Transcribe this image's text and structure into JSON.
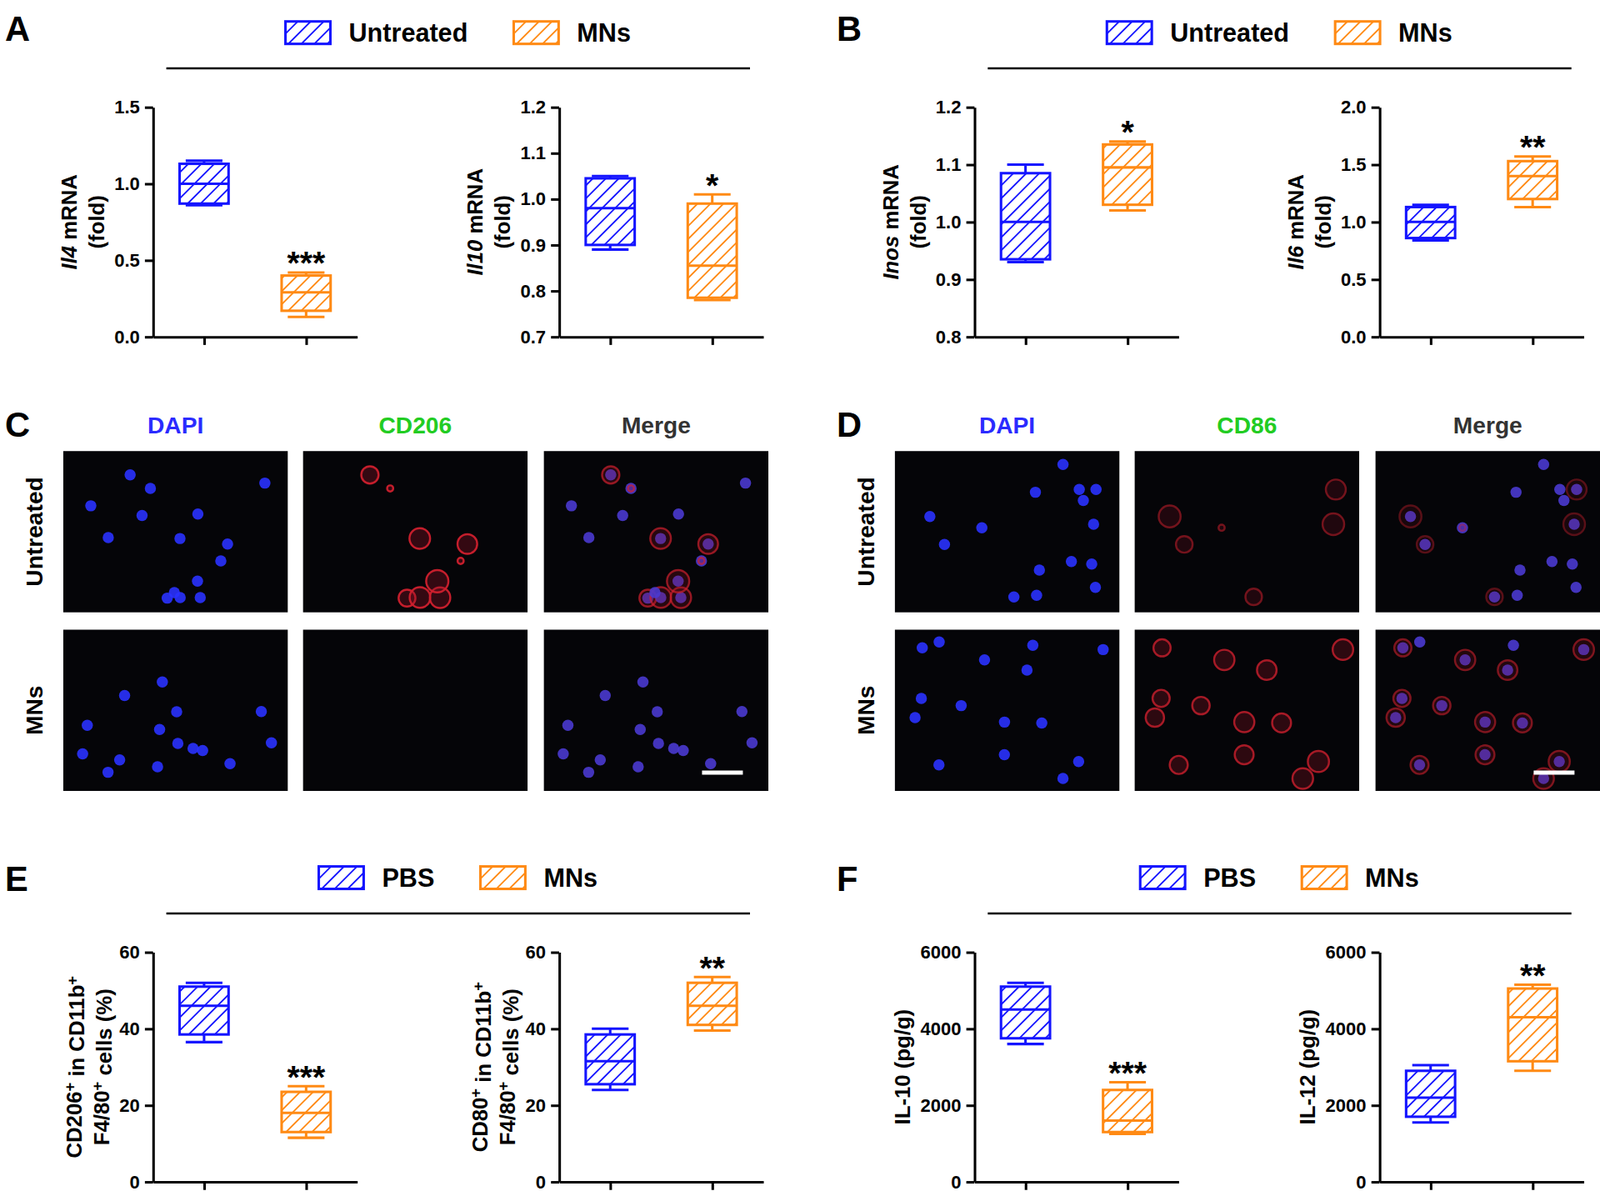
{
  "chart_data": [
    {
      "type": "box",
      "y_label": [
        "Il4 mRNA",
        "(fold)"
      ],
      "ylim": [
        0,
        1.5
      ],
      "yticks": [
        {
          "value": 0,
          "label": "0.0"
        },
        0.5,
        {
          "value": 1,
          "label": "1.0"
        },
        1.5
      ],
      "tick_labels": "y",
      "series": [
        {
          "name": "Untreated",
          "color": "#1414ff",
          "min": 0.86,
          "q1": 0.87,
          "median": 1.0,
          "q3": 1.13,
          "max": 1.15
        },
        {
          "name": "MNs",
          "color": "#ff8a14",
          "min": 0.13,
          "q1": 0.17,
          "median": 0.29,
          "q3": 0.4,
          "max": 0.42,
          "annotation": "***"
        }
      ]
    },
    {
      "type": "box",
      "y_label": [
        "Il10 mRNA",
        "(fold)"
      ],
      "ylim": [
        0.7,
        1.2
      ],
      "yticks": [
        0.7,
        0.8,
        0.9,
        {
          "value": 1,
          "label": "1.0"
        },
        1.1,
        1.2
      ],
      "tick_labels": "y",
      "series": [
        {
          "name": "Untreated",
          "color": "#1414ff",
          "min": 0.89,
          "q1": 0.9,
          "median": 0.98,
          "q3": 1.045,
          "max": 1.05
        },
        {
          "name": "MNs",
          "color": "#ff8a14",
          "min": 0.78,
          "q1": 0.785,
          "median": 0.855,
          "q3": 0.99,
          "max": 1.01,
          "annotation": "*"
        }
      ]
    },
    {
      "type": "box",
      "y_label": [
        "Inos mRNA",
        "(fold)"
      ],
      "ylim": [
        0.8,
        1.2
      ],
      "yticks": [
        0.8,
        0.9,
        {
          "value": 1,
          "label": "1.0"
        },
        1.1,
        1.2
      ],
      "tick_labels": "y",
      "series": [
        {
          "name": "Untreated",
          "color": "#1414ff",
          "min": 0.93,
          "q1": 0.935,
          "median": 1.0,
          "q3": 1.085,
          "max": 1.1
        },
        {
          "name": "MNs",
          "color": "#ff8a14",
          "min": 1.02,
          "q1": 1.03,
          "median": 1.095,
          "q3": 1.135,
          "max": 1.14,
          "annotation": "*"
        }
      ]
    },
    {
      "type": "box",
      "y_label": [
        "Il6 mRNA",
        "(fold)"
      ],
      "ylim": [
        0,
        2
      ],
      "yticks": [
        {
          "value": 0,
          "label": "0.0"
        },
        0.5,
        {
          "value": 1,
          "label": "1.0"
        },
        1.5,
        {
          "value": 2,
          "label": "2.0"
        }
      ],
      "tick_labels": "y",
      "series": [
        {
          "name": "Untreated",
          "color": "#1414ff",
          "min": 0.84,
          "q1": 0.86,
          "median": 1.0,
          "q3": 1.13,
          "max": 1.15
        },
        {
          "name": "MNs",
          "color": "#ff8a14",
          "min": 1.13,
          "q1": 1.2,
          "median": 1.4,
          "q3": 1.53,
          "max": 1.57,
          "annotation": "**"
        }
      ]
    },
    {
      "type": "box",
      "y_label": [
        "CD206+ in CD11b+",
        "F4/80+ cells (%)"
      ],
      "ylim": [
        0,
        60
      ],
      "yticks": [
        0,
        20,
        40,
        60
      ],
      "tick_labels": "y",
      "series": [
        {
          "name": "PBS",
          "color": "#1414ff",
          "min": 36.5,
          "q1": 38.5,
          "median": 46,
          "q3": 51,
          "max": 52
        },
        {
          "name": "MNs",
          "color": "#ff8a14",
          "min": 11.5,
          "q1": 13,
          "median": 18,
          "q3": 23.5,
          "max": 25,
          "annotation": "***"
        }
      ]
    },
    {
      "type": "box",
      "y_label": [
        "CD80+ in CD11b+",
        "F4/80+ cells (%)"
      ],
      "ylim": [
        0,
        60
      ],
      "yticks": [
        0,
        20,
        40,
        60
      ],
      "tick_labels": "y",
      "series": [
        {
          "name": "PBS",
          "color": "#1414ff",
          "min": 24,
          "q1": 25.5,
          "median": 31.5,
          "q3": 38.5,
          "max": 40
        },
        {
          "name": "MNs",
          "color": "#ff8a14",
          "min": 39.5,
          "q1": 41,
          "median": 46,
          "q3": 52,
          "max": 53.5,
          "annotation": "**"
        }
      ]
    },
    {
      "type": "box",
      "y_label": [
        "IL-10 (pg/g)"
      ],
      "ylim": [
        0,
        6000
      ],
      "yticks": [
        0,
        2000,
        4000,
        6000
      ],
      "tick_labels": "y",
      "series": [
        {
          "name": "PBS",
          "color": "#1414ff",
          "min": 3600,
          "q1": 3750,
          "median": 4500,
          "q3": 5100,
          "max": 5200
        },
        {
          "name": "MNs",
          "color": "#ff8a14",
          "min": 1250,
          "q1": 1300,
          "median": 1600,
          "q3": 2400,
          "max": 2600,
          "annotation": "***"
        }
      ]
    },
    {
      "type": "box",
      "y_label": [
        "IL-12 (pg/g)"
      ],
      "ylim": [
        0,
        6000
      ],
      "yticks": [
        0,
        2000,
        4000,
        6000
      ],
      "tick_labels": "y",
      "series": [
        {
          "name": "PBS",
          "color": "#1414ff",
          "min": 1550,
          "q1": 1700,
          "median": 2200,
          "q3": 2900,
          "max": 3050
        },
        {
          "name": "MNs",
          "color": "#ff8a14",
          "min": 2900,
          "q1": 3150,
          "median": 4300,
          "q3": 5050,
          "max": 5150,
          "annotation": "**"
        }
      ]
    }
  ],
  "figure": {
    "box_panel_labels": [
      "A",
      "B",
      "E",
      "F"
    ],
    "image_panels": [
      {
        "label": "C",
        "columns": [
          "DAPI",
          "CD206",
          "Merge"
        ],
        "rows": [
          "Untreated",
          "MNs"
        ]
      },
      {
        "label": "D",
        "columns": [
          "DAPI",
          "CD86",
          "Merge"
        ],
        "rows": [
          "Untreated",
          "MNs"
        ]
      }
    ]
  }
}
